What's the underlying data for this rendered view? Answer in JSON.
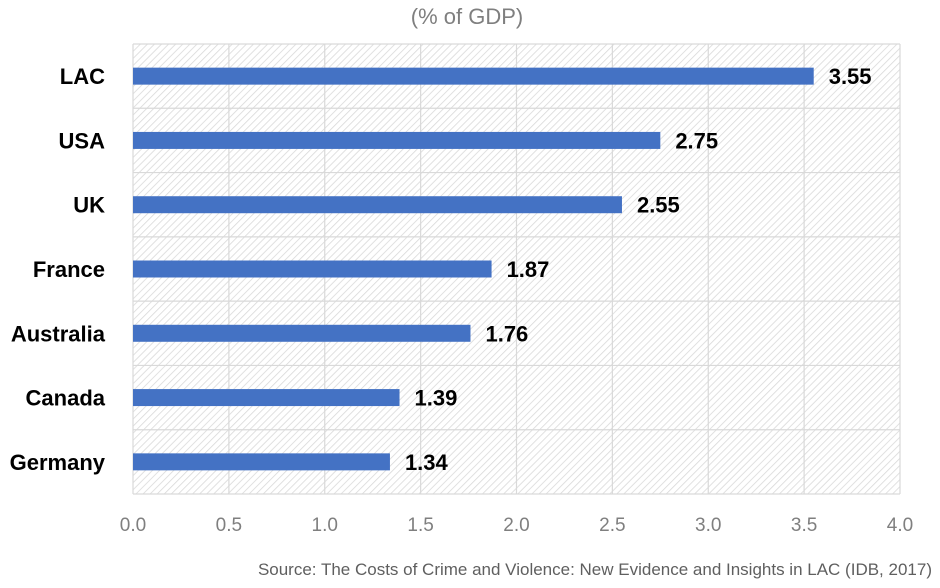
{
  "chart_data": {
    "type": "bar",
    "orientation": "horizontal",
    "title": "",
    "subtitle": "(% of GDP)",
    "categories": [
      "LAC",
      "USA",
      "UK",
      "France",
      "Australia",
      "Canada",
      "Germany"
    ],
    "values": [
      3.55,
      2.75,
      2.55,
      1.87,
      1.76,
      1.39,
      1.34
    ],
    "value_labels": [
      "3.55",
      "2.75",
      "2.55",
      "1.87",
      "1.76",
      "1.39",
      "1.34"
    ],
    "xlim": [
      0,
      4
    ],
    "xticks": [
      0,
      0.5,
      1,
      1.5,
      2,
      2.5,
      3,
      3.5,
      4
    ],
    "xtick_labels": [
      "0.0",
      "0.5",
      "1.0",
      "1.5",
      "2.0",
      "2.5",
      "3.0",
      "3.5",
      "4.0"
    ],
    "xlabel": "",
    "ylabel": "",
    "grid": true,
    "bar_color": "#4472c4",
    "source": "Source: The Costs of Crime and Violence: New Evidence and Insights in LAC (IDB, 2017)"
  }
}
